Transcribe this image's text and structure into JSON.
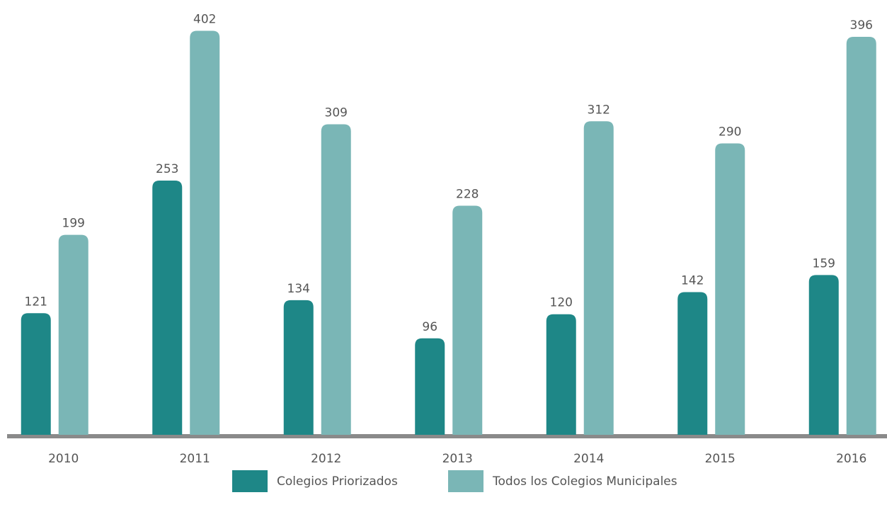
{
  "chart_data": {
    "type": "bar",
    "categories": [
      "2010",
      "2011",
      "2012",
      "2013",
      "2014",
      "2015",
      "2016"
    ],
    "series": [
      {
        "name": "Colegios Priorizados",
        "color": "#1e8787",
        "values": [
          121,
          253,
          134,
          96,
          120,
          142,
          159
        ]
      },
      {
        "name": "Todos los Colegios Municipales",
        "color": "#7ab6b6",
        "values": [
          199,
          402,
          309,
          228,
          312,
          290,
          396
        ]
      }
    ],
    "ylim": [
      0,
      420
    ]
  }
}
